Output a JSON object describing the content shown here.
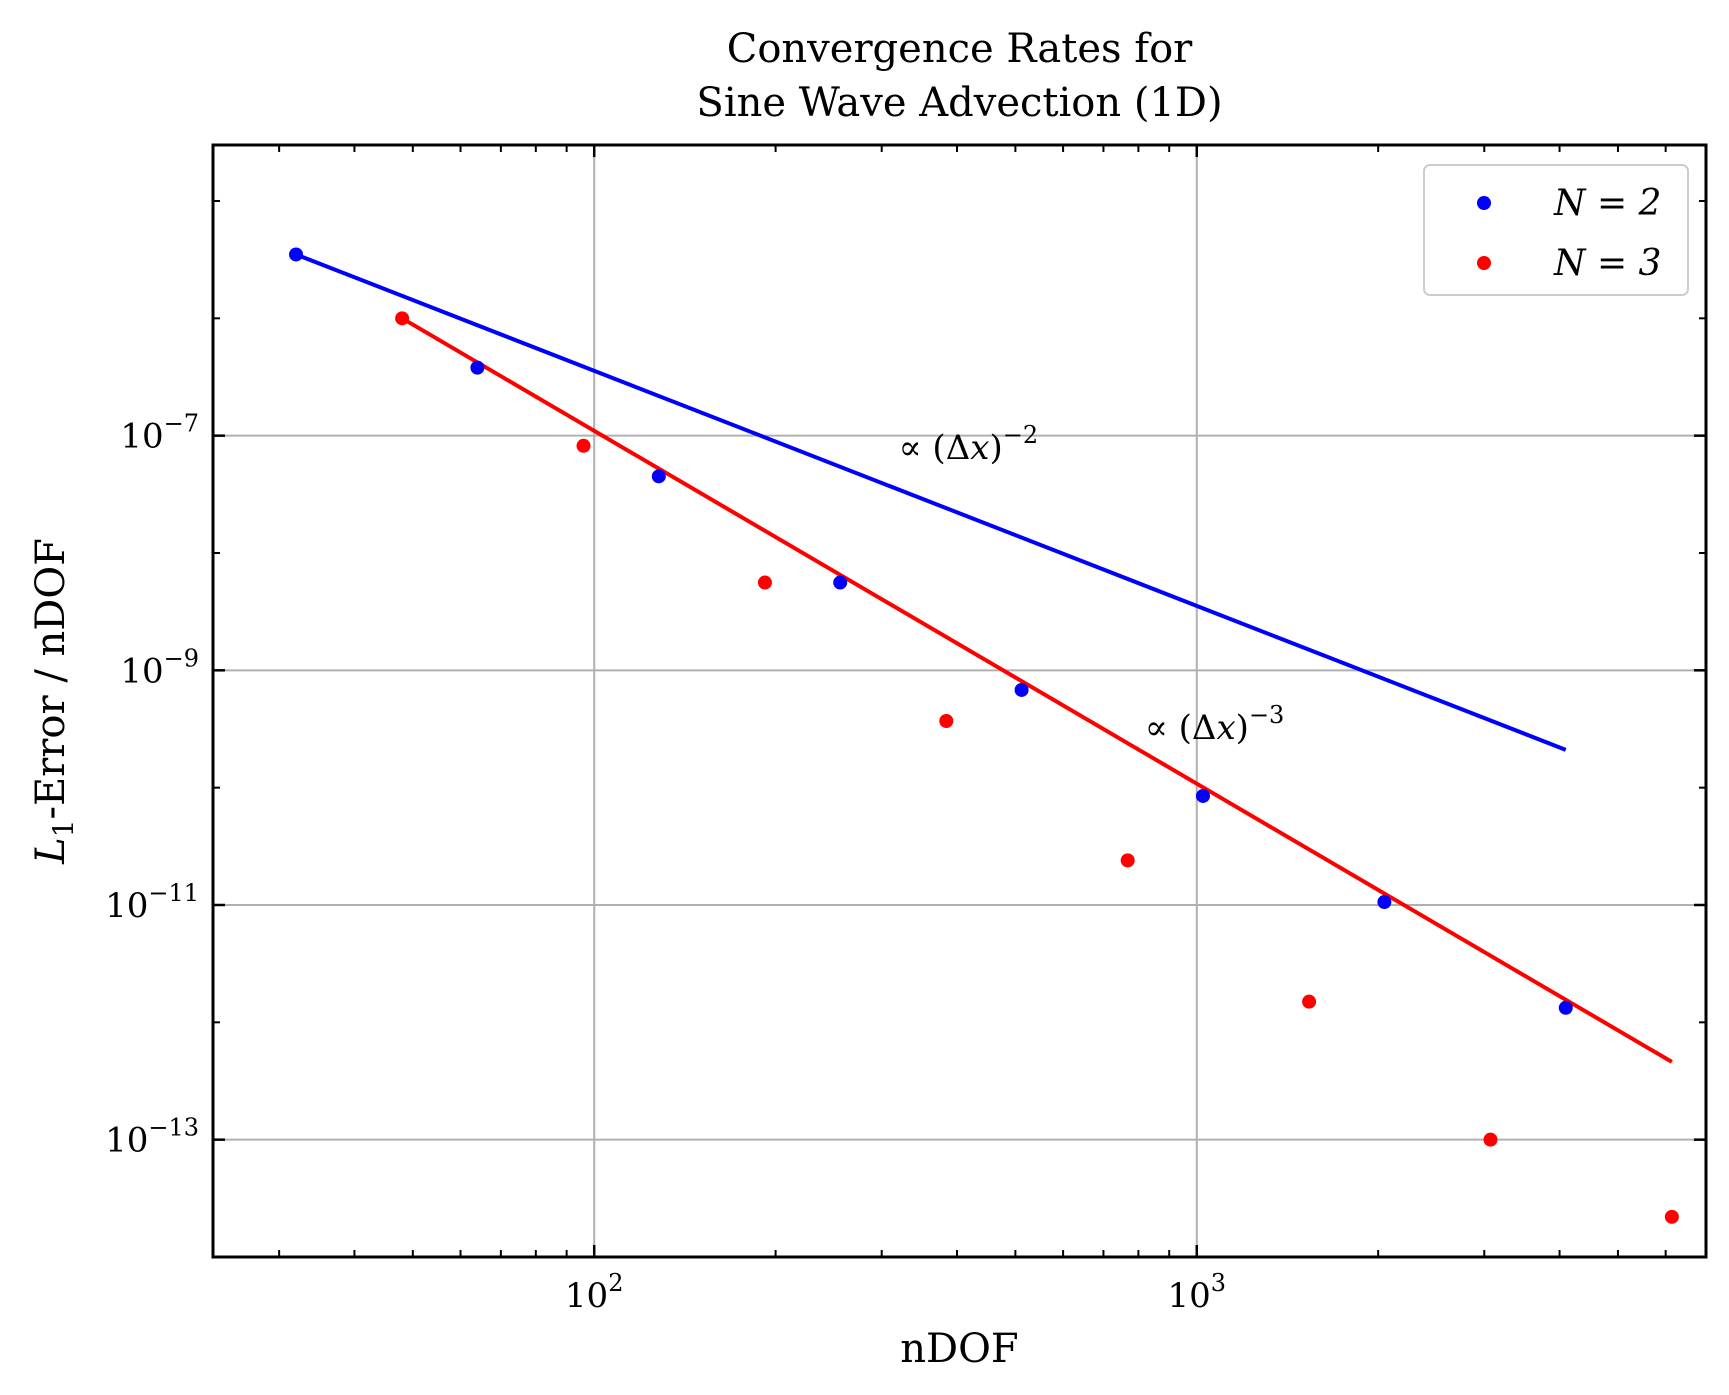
{
  "chart_data": {
    "type": "scatter",
    "title": [
      "Convergence Rates for",
      "Sine Wave Advection (1D)"
    ],
    "xlabel": "nDOF",
    "ylabel": "L1-Error / nDOF",
    "xscale": "log",
    "yscale": "log",
    "xlim": [
      23.3,
      7000
    ],
    "ylim": [
      1e-14,
      3e-05
    ],
    "grid": true,
    "legend": "top-right",
    "x_ticks": [
      {
        "value": 100,
        "label": "10^2"
      },
      {
        "value": 1000,
        "label": "10^3"
      }
    ],
    "y_ticks": [
      {
        "value": 1e-07,
        "label": "10^-7"
      },
      {
        "value": 1e-09,
        "label": "10^-9"
      },
      {
        "value": 1e-11,
        "label": "10^-11"
      },
      {
        "value": 1e-13,
        "label": "10^-13"
      }
    ],
    "series": [
      {
        "name": "N = 2",
        "color": "#0000ff",
        "points": [
          {
            "x": 32,
            "y": 3.5e-06
          },
          {
            "x": 64,
            "y": 3.8e-07
          },
          {
            "x": 128,
            "y": 4.5e-08
          },
          {
            "x": 256,
            "y": 5.6e-09
          },
          {
            "x": 512,
            "y": 6.8e-10
          },
          {
            "x": 1024,
            "y": 8.5e-11
          },
          {
            "x": 2048,
            "y": 1.06e-11
          },
          {
            "x": 4096,
            "y": 1.33e-12
          }
        ],
        "fit": [
          {
            "x": 32,
            "y": 3.5e-06
          },
          {
            "x": 4096,
            "y": 2.1e-10
          }
        ]
      },
      {
        "name": "N = 3",
        "color": "#ff0000",
        "points": [
          {
            "x": 48,
            "y": 1e-06
          },
          {
            "x": 96,
            "y": 8.2e-08
          },
          {
            "x": 192,
            "y": 5.6e-09
          },
          {
            "x": 384,
            "y": 3.7e-10
          },
          {
            "x": 768,
            "y": 2.4e-11
          },
          {
            "x": 1536,
            "y": 1.5e-12
          },
          {
            "x": 3072,
            "y": 1e-13
          },
          {
            "x": 6144,
            "y": 2.2e-14
          }
        ],
        "fit": [
          {
            "x": 48,
            "y": 1e-06
          },
          {
            "x": 6144,
            "y": 4.6e-13
          }
        ]
      }
    ],
    "annotations": [
      {
        "text": "∝ (Δx)",
        "exponent": "−2",
        "x": 320,
        "y": 6.3e-08
      },
      {
        "text": "∝ (Δx)",
        "exponent": "−3",
        "x": 820,
        "y": 2.6e-10
      }
    ]
  }
}
